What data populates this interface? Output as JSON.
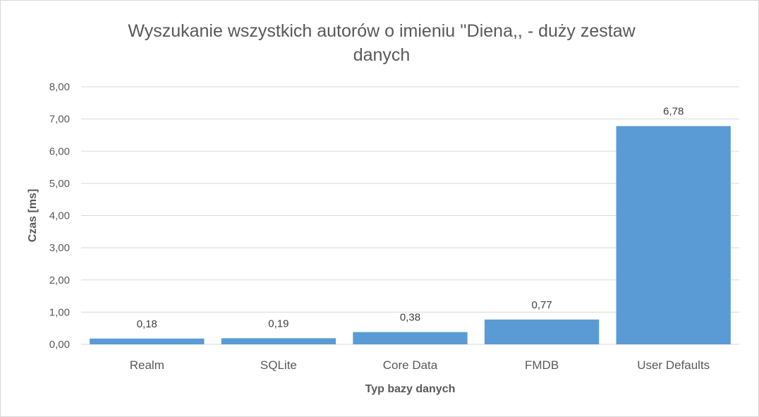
{
  "chart_data": {
    "type": "bar",
    "title": "Wyszukanie wszystkich autorów o imieniu ''Diena,, - duży zestaw danych",
    "xlabel": "Typ bazy danych",
    "ylabel": "Czas [ms]",
    "categories": [
      "Realm",
      "SQLite",
      "Core Data",
      "FMDB",
      "User Defaults"
    ],
    "values": [
      0.18,
      0.19,
      0.38,
      0.77,
      6.78
    ],
    "data_labels": [
      "0,18",
      "0,19",
      "0,38",
      "0,77",
      "6,78"
    ],
    "ylim": [
      0,
      8
    ],
    "yticks": [
      0,
      1,
      2,
      3,
      4,
      5,
      6,
      7,
      8
    ],
    "ytick_labels": [
      "0,00",
      "1,00",
      "2,00",
      "3,00",
      "4,00",
      "5,00",
      "6,00",
      "7,00",
      "8,00"
    ],
    "grid": true,
    "legend": "none",
    "bar_color": "#5b9bd5",
    "grid_color": "#d9d9d9"
  }
}
